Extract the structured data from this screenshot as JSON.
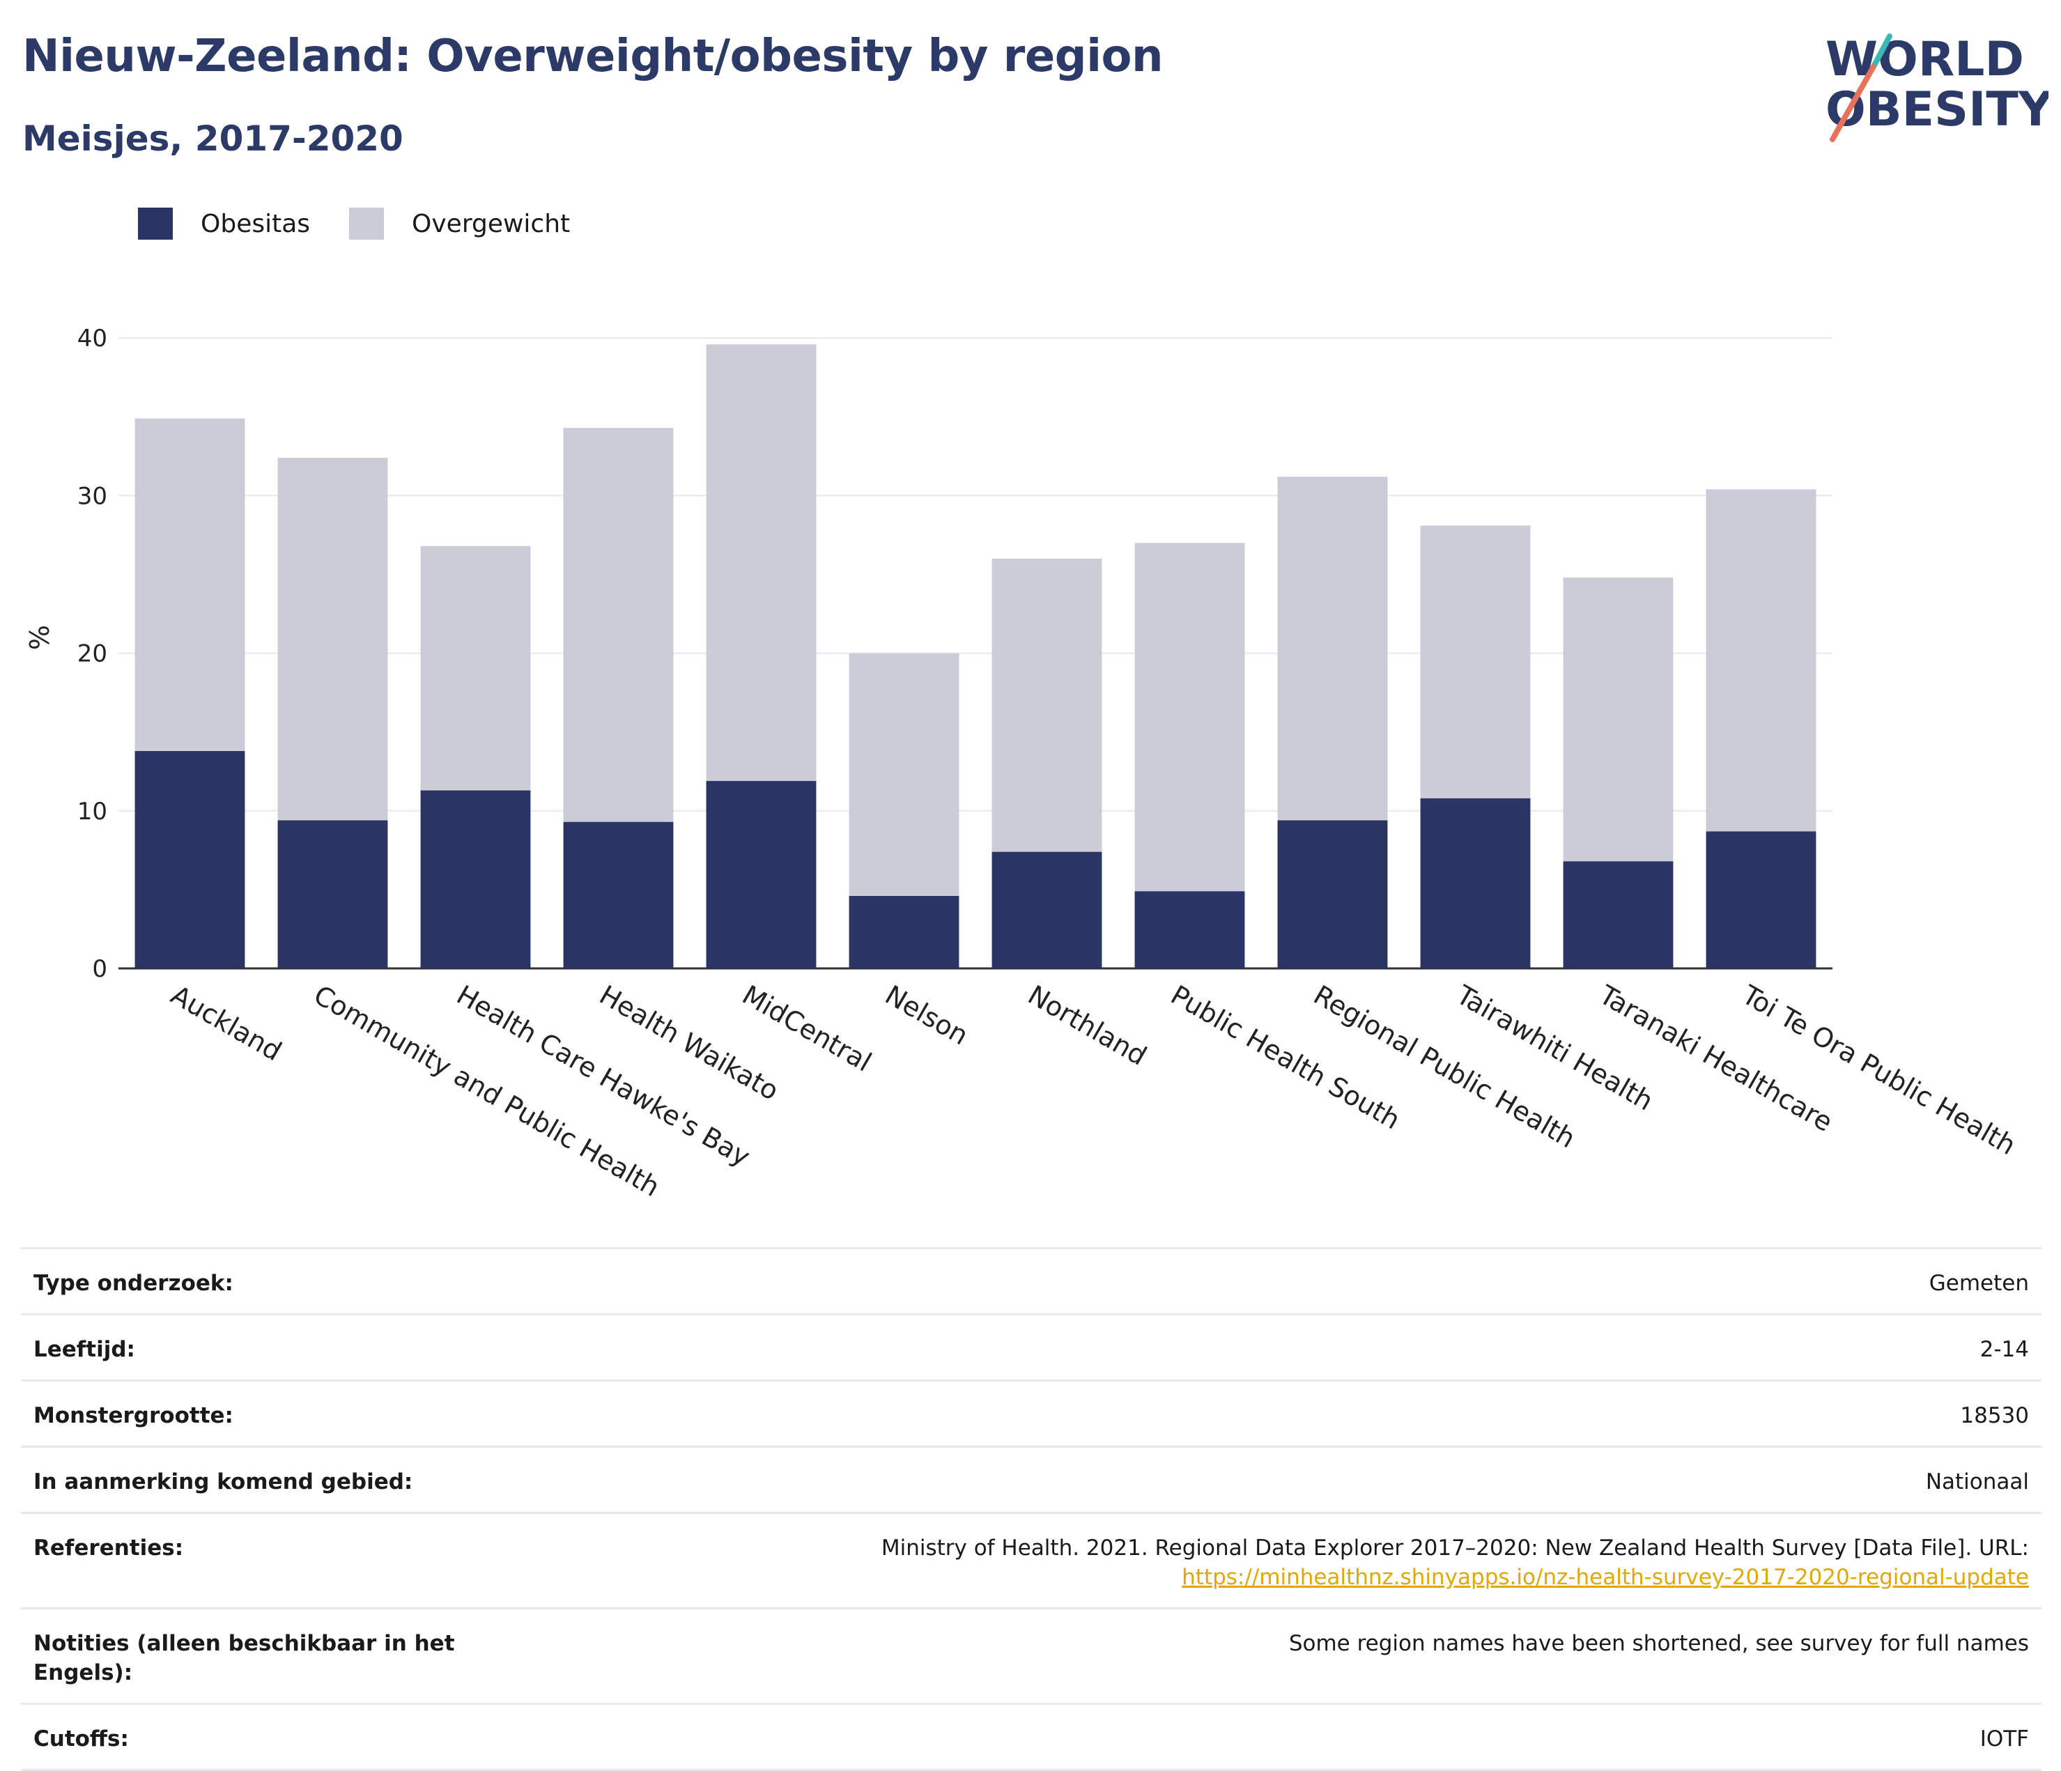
{
  "header": {
    "title": "Nieuw-Zeeland: Overweight/obesity by region",
    "subtitle": "Meisjes, 2017-2020"
  },
  "logo": {
    "line1": "WORLD",
    "line2": "OBESITY"
  },
  "legend": [
    {
      "label": "Obesitas",
      "color": "#2b3563"
    },
    {
      "label": "Overgewicht",
      "color": "#cbccd7"
    }
  ],
  "chart_data": {
    "type": "bar",
    "stacked": true,
    "ylabel": "%",
    "xlabel": "",
    "ylim": [
      0,
      42
    ],
    "yticks": [
      0,
      10,
      20,
      30,
      40
    ],
    "grid": true,
    "legend_position": "top-left",
    "categories": [
      "Auckland",
      "Community and Public Health",
      "Health Care Hawke's Bay",
      "Health Waikato",
      "MidCentral",
      "Nelson",
      "Northland",
      "Public Health South",
      "Regional Public Health",
      "Tairawhiti Health",
      "Taranaki Healthcare",
      "Toi Te Ora Public Health"
    ],
    "series": [
      {
        "name": "Obesitas",
        "color": "#2b3563",
        "values": [
          13.8,
          9.4,
          11.3,
          9.3,
          11.9,
          4.6,
          7.4,
          4.9,
          9.4,
          10.8,
          6.8,
          8.7
        ]
      },
      {
        "name": "Overgewicht",
        "color": "#cbccd7",
        "values": [
          21.1,
          23.0,
          15.5,
          25.0,
          27.7,
          15.4,
          18.6,
          22.1,
          21.8,
          17.3,
          18.0,
          21.7
        ]
      }
    ]
  },
  "meta": [
    {
      "key": "Type onderzoek:",
      "value": "Gemeten"
    },
    {
      "key": "Leeftijd:",
      "value": "2-14"
    },
    {
      "key": "Monstergrootte:",
      "value": "18530"
    },
    {
      "key": "In aanmerking komend gebied:",
      "value": "Nationaal"
    },
    {
      "key": "Referenties:",
      "value": "Ministry of Health. 2021. Regional Data Explorer 2017–2020: New Zealand Health Survey [Data File]. URL:",
      "link": "https://minhealthnz.shinyapps.io/nz-health-survey-2017-2020-regional-update"
    },
    {
      "key": "Notities (alleen beschikbaar in het Engels):",
      "value": "Some region names have been shortened, see survey for full names"
    },
    {
      "key": "Cutoffs:",
      "value": "IOTF"
    }
  ]
}
